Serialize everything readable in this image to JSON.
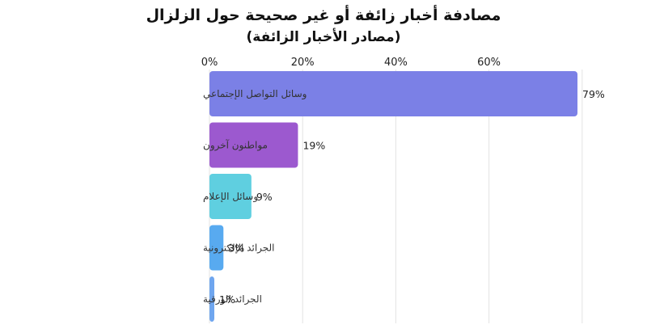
{
  "chart_data": {
    "type": "bar",
    "orientation": "horizontal",
    "title": "مصادفة أخبار زائفة أو غير صحيحة حول الزلزال",
    "subtitle": "(مصادر الأخبار الزائفة)",
    "categories": [
      "وسائل التواصل الإجتماعي",
      "مواطنون آخرون",
      "وسائل الإعلام",
      "الجرائد الإلكترونية",
      "الجرائد الورقية"
    ],
    "values": [
      79,
      19,
      9,
      3,
      1
    ],
    "value_labels": [
      "79%",
      "19%",
      "9%",
      "3%",
      "1%"
    ],
    "xticks": [
      0,
      20,
      40,
      60
    ],
    "xtick_labels": [
      "0%",
      "20%",
      "40%",
      "60%"
    ],
    "xlim": [
      0,
      80
    ],
    "grid": true,
    "legend": "none",
    "colors": [
      "#7b80e6",
      "#9c59cf",
      "#5fcfe0",
      "#58aaf0",
      "#6fa6ef"
    ]
  }
}
